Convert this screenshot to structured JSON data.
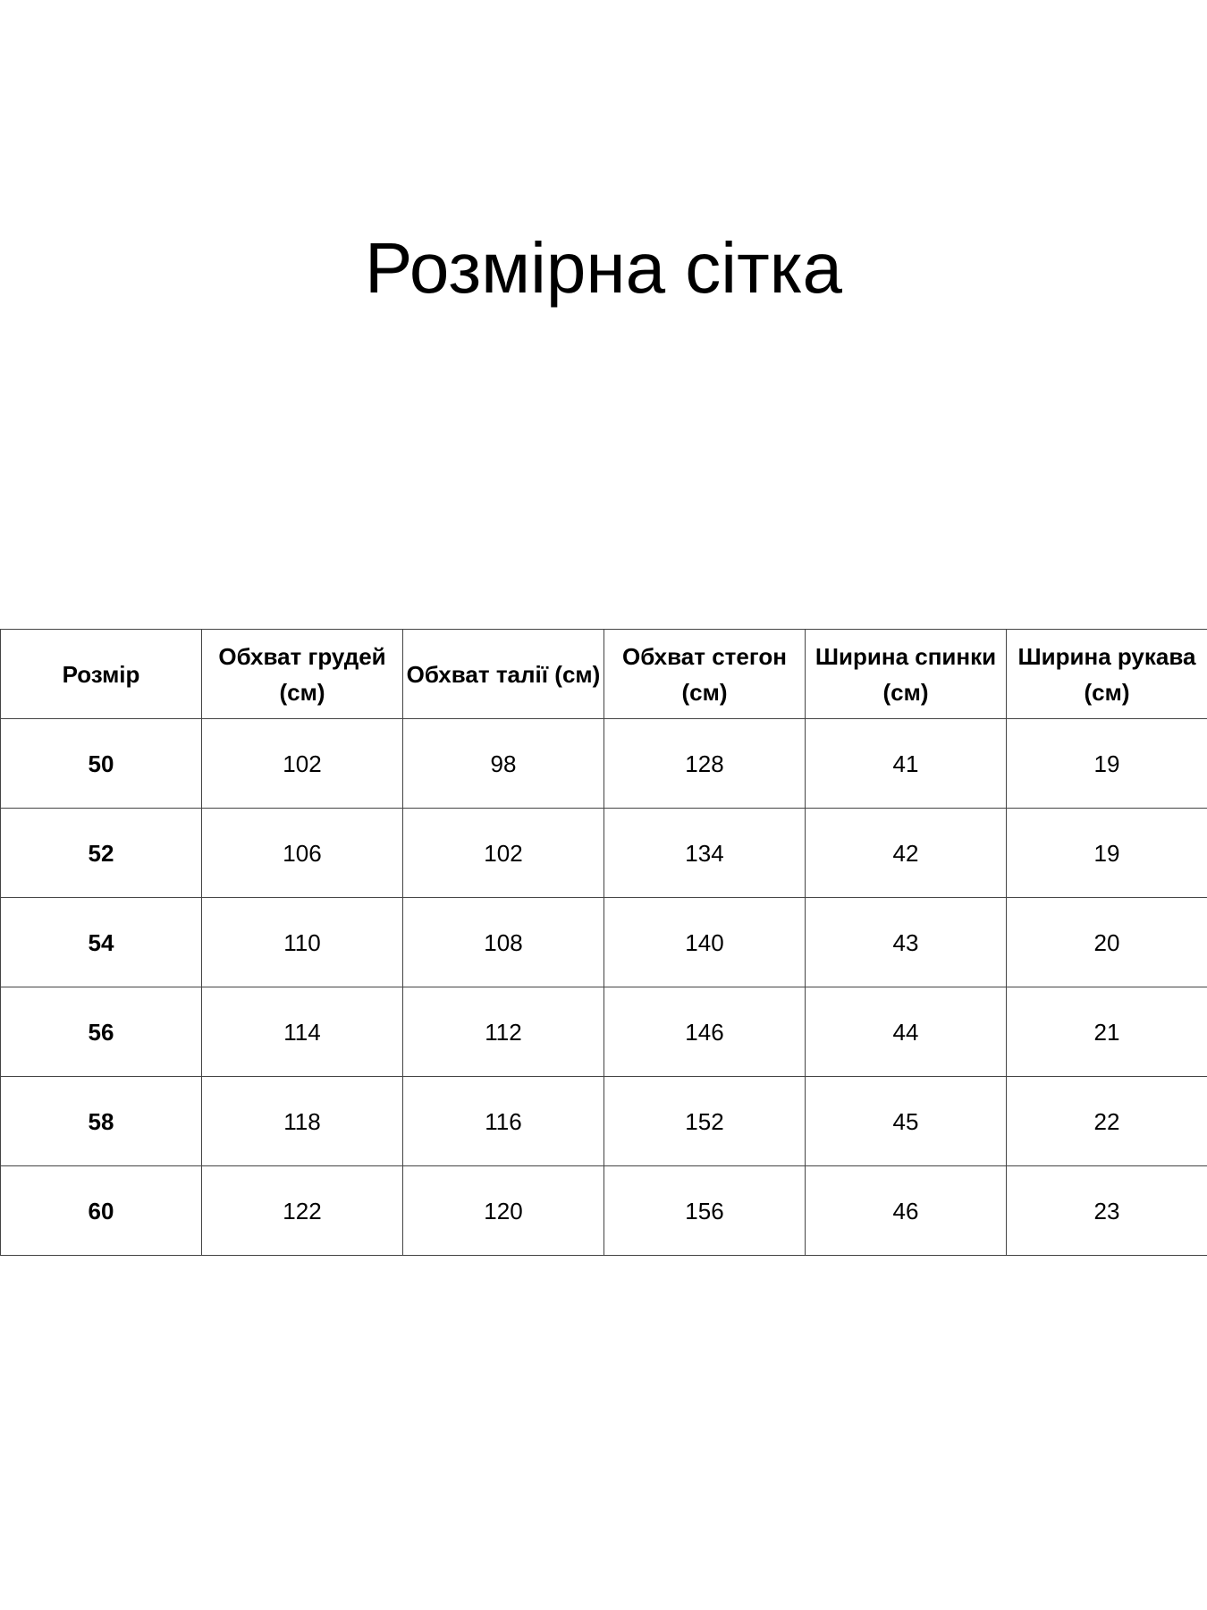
{
  "title": "Розмірна сітка",
  "table": {
    "headers": [
      "Розмір",
      "Обхват грудей (см)",
      "Обхват талії (см)",
      "Обхват стегон (см)",
      "Ширина спинки (см)",
      "Ширина рукава (см)"
    ],
    "rows": [
      [
        "50",
        "102",
        "98",
        "128",
        "41",
        "19"
      ],
      [
        "52",
        "106",
        "102",
        "134",
        "42",
        "19"
      ],
      [
        "54",
        "110",
        "108",
        "140",
        "43",
        "20"
      ],
      [
        "56",
        "114",
        "112",
        "146",
        "44",
        "21"
      ],
      [
        "58",
        "118",
        "116",
        "152",
        "45",
        "22"
      ],
      [
        "60",
        "122",
        "120",
        "156",
        "46",
        "23"
      ]
    ]
  }
}
